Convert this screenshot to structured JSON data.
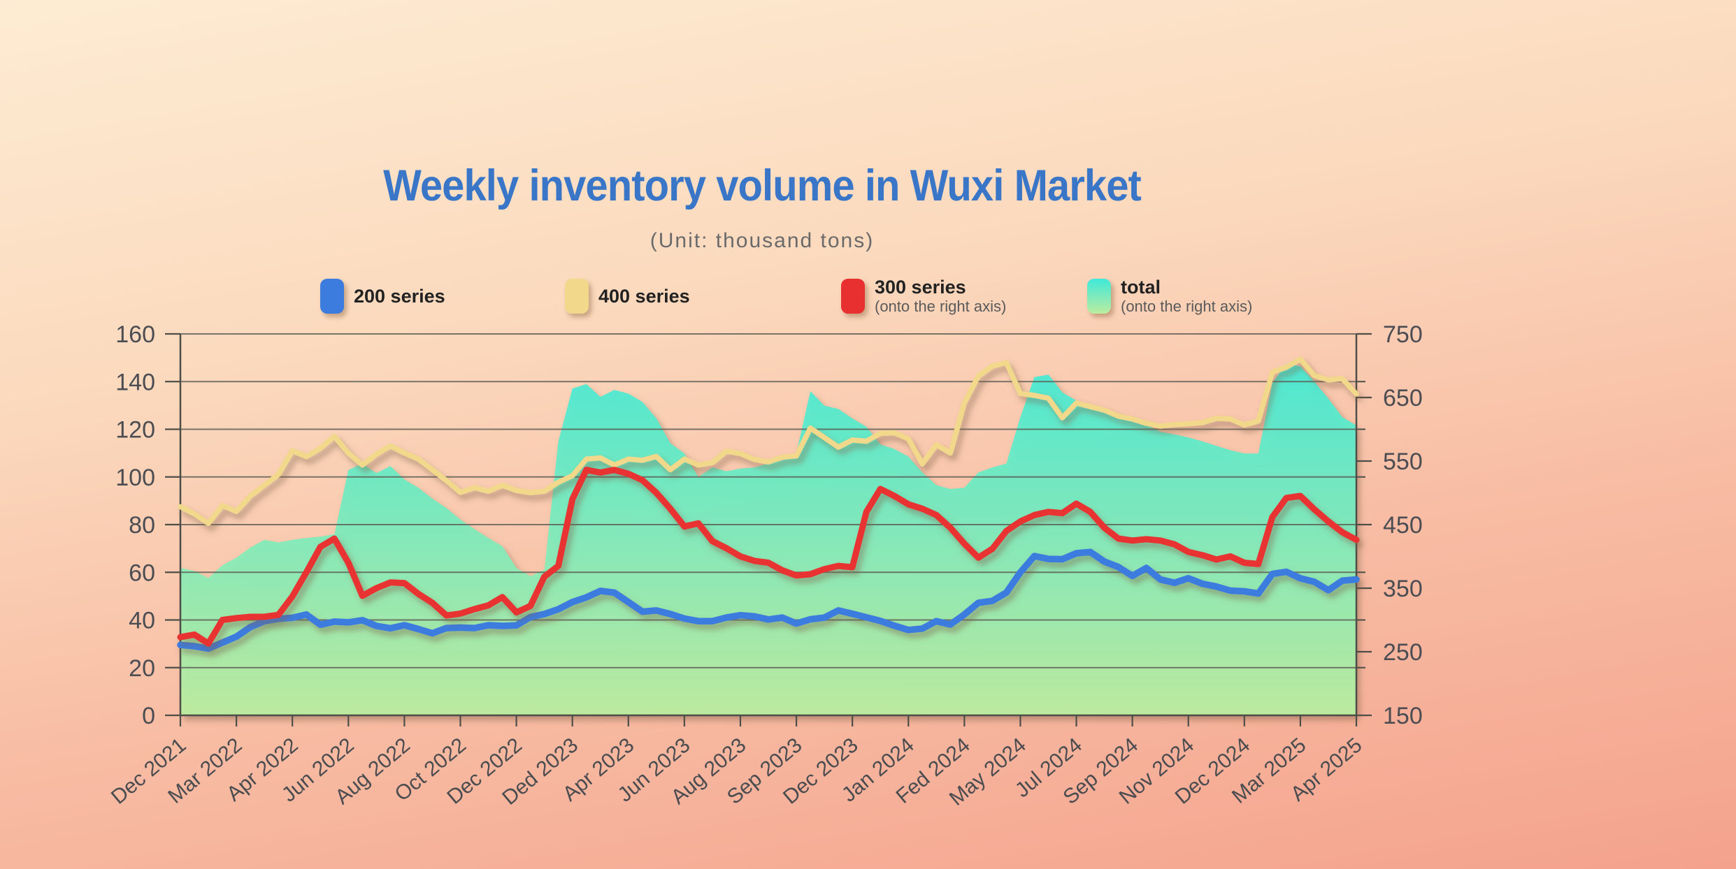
{
  "chart_data": {
    "type": "line",
    "title": "Weekly inventory volume in Wuxi Market",
    "subtitle": "(Unit: thousand tons)",
    "x_labels": [
      "Dec 2021",
      "Mar 2022",
      "Apr 2022",
      "Jun 2022",
      "Aug 2022",
      "Oct 2022",
      "Dec 2022",
      "Ded 2023",
      "Apr 2023",
      "Jun 2023",
      "Aug 2023",
      "Sep 2023",
      "Dec 2023",
      "Jan 2024",
      "Fed 2024",
      "May 2024",
      "Jul 2024",
      "Sep 2024",
      "Nov 2024",
      "Dec 2024",
      "Mar 2025",
      "Apr 2025"
    ],
    "left_axis": {
      "range": [
        0,
        160
      ],
      "ticks": [
        0,
        20,
        40,
        60,
        80,
        100,
        120,
        140,
        160
      ]
    },
    "right_axis": {
      "range": [
        150,
        750
      ],
      "ticks": [
        150,
        250,
        350,
        450,
        550,
        650,
        750
      ]
    },
    "grid": true,
    "legend_position": "top",
    "series": [
      {
        "name": "200 series",
        "note": "",
        "axis": "left",
        "kind": "line",
        "color": "#3d7cdf",
        "values": [
          29.5,
          29,
          28,
          30.5,
          33,
          37,
          39.5,
          40.5,
          40.9,
          42.3,
          38,
          39.3,
          39,
          39.9,
          37.5,
          36.5,
          37.8,
          36.2,
          34.4,
          36.6,
          36.8,
          36.6,
          37.8,
          37.5,
          37.7,
          41.2,
          42.5,
          44.5,
          47.5,
          49.5,
          52.2,
          51.5,
          47.5,
          43.5,
          44,
          42.5,
          40.6,
          39.5,
          39.5,
          41,
          42,
          41.5,
          40.2,
          41,
          38.5,
          40.3,
          41,
          44,
          42.6,
          41.1,
          39.6,
          37.6,
          35.8,
          36.4,
          39.5,
          38.1,
          42.3,
          47.2,
          48,
          51.5,
          60,
          66.8,
          65.6,
          65.5,
          68,
          68.5,
          64.5,
          62.2,
          58.5,
          61.8,
          57,
          55.6,
          57.5,
          55.2,
          54,
          52.3,
          52,
          51.1,
          59.3,
          60.2,
          57.5,
          56,
          52.5,
          56.5,
          57
        ]
      },
      {
        "name": "400 series",
        "note": "",
        "axis": "left",
        "kind": "line",
        "color": "#f1d88a",
        "values": [
          87.5,
          84.5,
          80.5,
          88,
          85.5,
          92,
          96.5,
          101,
          111,
          108.5,
          112,
          117,
          110,
          105,
          109.5,
          113,
          110,
          107.5,
          103,
          98.5,
          93.5,
          95.5,
          94,
          96.5,
          94.3,
          93.4,
          94,
          97.8,
          100.5,
          107.5,
          108,
          105,
          107.5,
          107,
          108.6,
          103,
          107.5,
          105,
          106,
          110.8,
          109.8,
          107.3,
          106.3,
          108.3,
          108.8,
          120.5,
          116.5,
          112.5,
          115.5,
          115,
          118.3,
          118.5,
          116,
          105.5,
          113.5,
          110,
          131,
          142.3,
          146.5,
          148,
          135,
          134.2,
          133,
          124.8,
          131,
          129.5,
          128,
          125.5,
          124.3,
          122.5,
          121.3,
          122,
          122.3,
          122.8,
          124.6,
          124.3,
          121.8,
          123.5,
          144,
          146,
          149.5,
          142.5,
          140.7,
          141.2,
          134.8
        ]
      },
      {
        "name": "300 series",
        "note": "(onto the right axis)",
        "axis": "right",
        "kind": "line",
        "color": "#e93030",
        "values": [
          273,
          277,
          263,
          300,
          303,
          305,
          305,
          308,
          337,
          375,
          415,
          428,
          390,
          338,
          350,
          359,
          358,
          341,
          327,
          307,
          310,
          317,
          323,
          336,
          312,
          322,
          368,
          385,
          490,
          536,
          532,
          536,
          530,
          520,
          500,
          475,
          447,
          452,
          424,
          413,
          400,
          393,
          390,
          378,
          370,
          372,
          380,
          385,
          383,
          470,
          506,
          495,
          482,
          475,
          465,
          445,
          420,
          398,
          412,
          440,
          455,
          465,
          470,
          468,
          483,
          470,
          445,
          428,
          425,
          427,
          425,
          419,
          407,
          402,
          395,
          400,
          390,
          388,
          462,
          492,
          495,
          474,
          455,
          438,
          426
        ]
      },
      {
        "name": "total",
        "note": "(onto the right axis)",
        "axis": "right",
        "kind": "area",
        "color": "#41e8d8",
        "gradient": [
          "#3fe9d9",
          "#bcec9f"
        ],
        "values": [
          382,
          377,
          366,
          386,
          398,
          414,
          426,
          422,
          426,
          429,
          431,
          435,
          536,
          546,
          531,
          542,
          521,
          508,
          491,
          476,
          458,
          443,
          429,
          416,
          382,
          369,
          379,
          581,
          664,
          671,
          651,
          662,
          656,
          643,
          617,
          578,
          562,
          525,
          540,
          534,
          538,
          540,
          546,
          551,
          562,
          660,
          637,
          632,
          617,
          604,
          576,
          569,
          557,
          532,
          512,
          506,
          508,
          532,
          540,
          546,
          619,
          682,
          686,
          658,
          645,
          637,
          631,
          622,
          613,
          607,
          596,
          592,
          587,
          581,
          574,
          567,
          562,
          562,
          673,
          703,
          699,
          675,
          648,
          619,
          606
        ]
      }
    ]
  }
}
